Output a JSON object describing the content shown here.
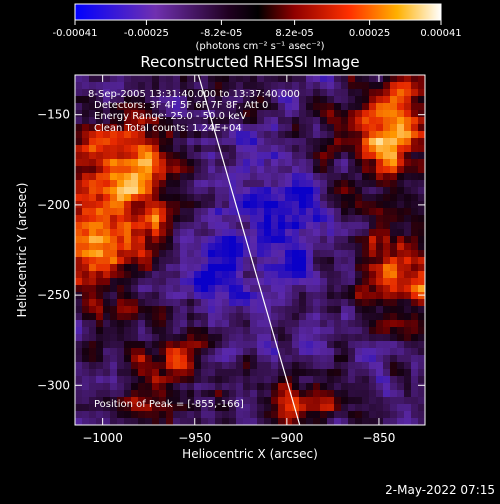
{
  "chart_data": {
    "type": "heatmap",
    "title": "Reconstructed RHESSI Image",
    "colorbar": {
      "ticks": [
        "-0.00041",
        "-0.00025",
        "-8.2e-05",
        "8.2e-05",
        "0.00025",
        "0.00041"
      ],
      "tick_values": [
        -0.00041,
        -0.00025,
        -8.2e-05,
        8.2e-05,
        0.00025,
        0.00041
      ],
      "range": [
        -0.00041,
        0.00041
      ],
      "unit_label": "(photons cm⁻² s⁻¹ asec⁻²)",
      "colormap": [
        "#0000ff",
        "#8040c0",
        "#000000",
        "#a00000",
        "#ff4000",
        "#ffc000",
        "#ffffff"
      ]
    },
    "xlabel": "Heliocentric X (arcsec)",
    "ylabel": "Heliocentric Y (arcsec)",
    "xlim": [
      -1015,
      -825
    ],
    "ylim": [
      -322,
      -128
    ],
    "xticks": [
      -1000,
      -950,
      -900,
      -850
    ],
    "xtick_labels": [
      "−1000",
      "−950",
      "−900",
      "−850"
    ],
    "yticks": [
      -150,
      -200,
      -250,
      -300
    ],
    "ytick_labels": [
      "−150",
      "−200",
      "−250",
      "−300"
    ],
    "info_lines": [
      "8-Sep-2005 13:31:40.000 to 13:37:40.000",
      "Detectors: 3F 4F 5F 6F 7F 8F, Att 0",
      "Energy Range: 25.0 - 50.0 keV",
      "Clean    Total counts: 1.24E+04"
    ],
    "peak_label": "Position of Peak = [-855,-166]",
    "peak": [
      -855,
      -166
    ],
    "limb_line": {
      "x": [
        -948,
        -893
      ],
      "y": [
        -128,
        -322
      ]
    },
    "timestamp": "2-May-2022 07:15"
  }
}
